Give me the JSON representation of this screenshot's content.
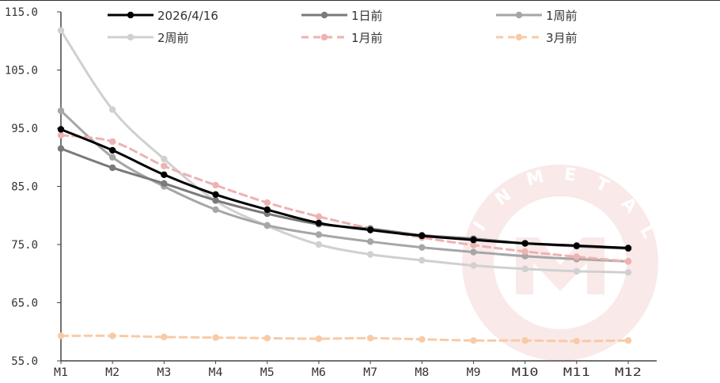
{
  "chart_data": {
    "type": "line",
    "title": "",
    "xlabel": "",
    "ylabel": "",
    "categories": [
      "M1",
      "M2",
      "M3",
      "M4",
      "M5",
      "M6",
      "M7",
      "M8",
      "M9",
      "M10",
      "M11",
      "M12"
    ],
    "x_tick_labels": [
      "M1",
      "M2",
      "M3",
      "M4",
      "M5",
      "M6",
      "M7",
      "M8",
      "M9",
      "M10",
      "M11",
      "M12"
    ],
    "ylim": [
      55,
      115
    ],
    "y_ticks": [
      55,
      65,
      75,
      85,
      95,
      105,
      115
    ],
    "y_tick_labels": [
      "55.0",
      "65.0",
      "75.0",
      "85.0",
      "95.0",
      "105.0",
      "115.0"
    ],
    "grid": false,
    "legend_position": "top",
    "watermark": "INMETAL",
    "series": [
      {
        "name": "2026/4/16",
        "color": "#000000",
        "dashed": false,
        "values": [
          94.8,
          91.2,
          87.0,
          83.6,
          81.0,
          78.7,
          77.5,
          76.5,
          75.8,
          75.2,
          74.8,
          74.4
        ]
      },
      {
        "name": "1日前",
        "color": "#7a7a7a",
        "dashed": false,
        "values": [
          91.5,
          88.2,
          85.5,
          82.6,
          80.3,
          78.5,
          77.7,
          76.6,
          76.0,
          75.2,
          74.7,
          74.3
        ]
      },
      {
        "name": "1周前",
        "color": "#a6a6a6",
        "dashed": false,
        "values": [
          98.0,
          90.0,
          85.0,
          81.0,
          78.3,
          76.7,
          75.5,
          74.5,
          73.7,
          73.0,
          72.5,
          72.1
        ]
      },
      {
        "name": "2周前",
        "color": "#d0d0d0",
        "dashed": false,
        "values": [
          111.8,
          98.2,
          89.7,
          82.5,
          78.2,
          75.0,
          73.3,
          72.3,
          71.4,
          70.8,
          70.4,
          70.2
        ]
      },
      {
        "name": "1月前",
        "color": "#eeb2b2",
        "dashed": true,
        "values": [
          93.8,
          92.7,
          88.5,
          85.2,
          82.2,
          79.8,
          77.8,
          76.2,
          74.9,
          73.8,
          72.9,
          72.1
        ]
      },
      {
        "name": "3月前",
        "color": "#f7cba8",
        "dashed": true,
        "values": [
          59.3,
          59.3,
          59.1,
          59.0,
          58.9,
          58.8,
          58.9,
          58.7,
          58.5,
          58.5,
          58.4,
          58.5
        ]
      }
    ]
  }
}
